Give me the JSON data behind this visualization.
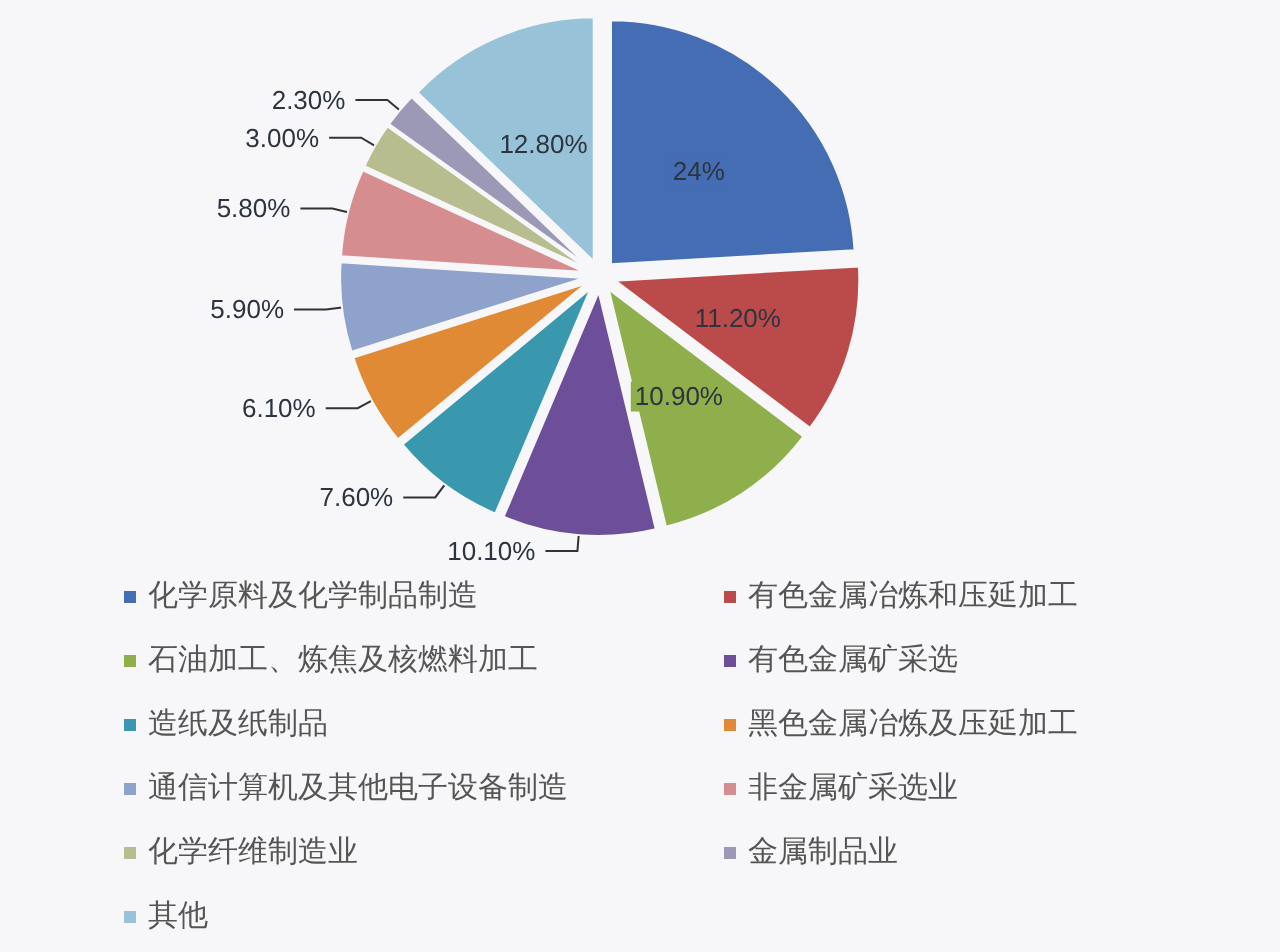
{
  "chart_data": {
    "type": "pie",
    "categories": [
      "化学原料及化学制品制造",
      "有色金属冶炼和压延加工",
      "石油加工、炼焦及核燃料加工",
      "有色金属矿采选",
      "造纸及纸制品",
      "黑色金属冶炼及压延加工",
      "通信计算机及其他电子设备制造",
      "非金属矿采选业",
      "化学纤维制造业",
      "金属制品业",
      "其他"
    ],
    "values": [
      24,
      11.2,
      10.9,
      10.1,
      7.6,
      6.1,
      5.9,
      5.8,
      3.0,
      2.3,
      12.8
    ],
    "colors": [
      "#456db3",
      "#bb4b4b",
      "#8fae4c",
      "#6c4f98",
      "#3a98ae",
      "#e08a36",
      "#8ea2cb",
      "#d68d8f",
      "#b8bd8f",
      "#9b99b6",
      "#98c2d8"
    ],
    "value_labels": [
      "24%",
      "11.20%",
      "10.90%",
      "10.10%",
      "7.60%",
      "6.10%",
      "5.90%",
      "5.80%",
      "3.00%",
      "2.30%",
      "12.80%"
    ],
    "legend": "bottom"
  }
}
